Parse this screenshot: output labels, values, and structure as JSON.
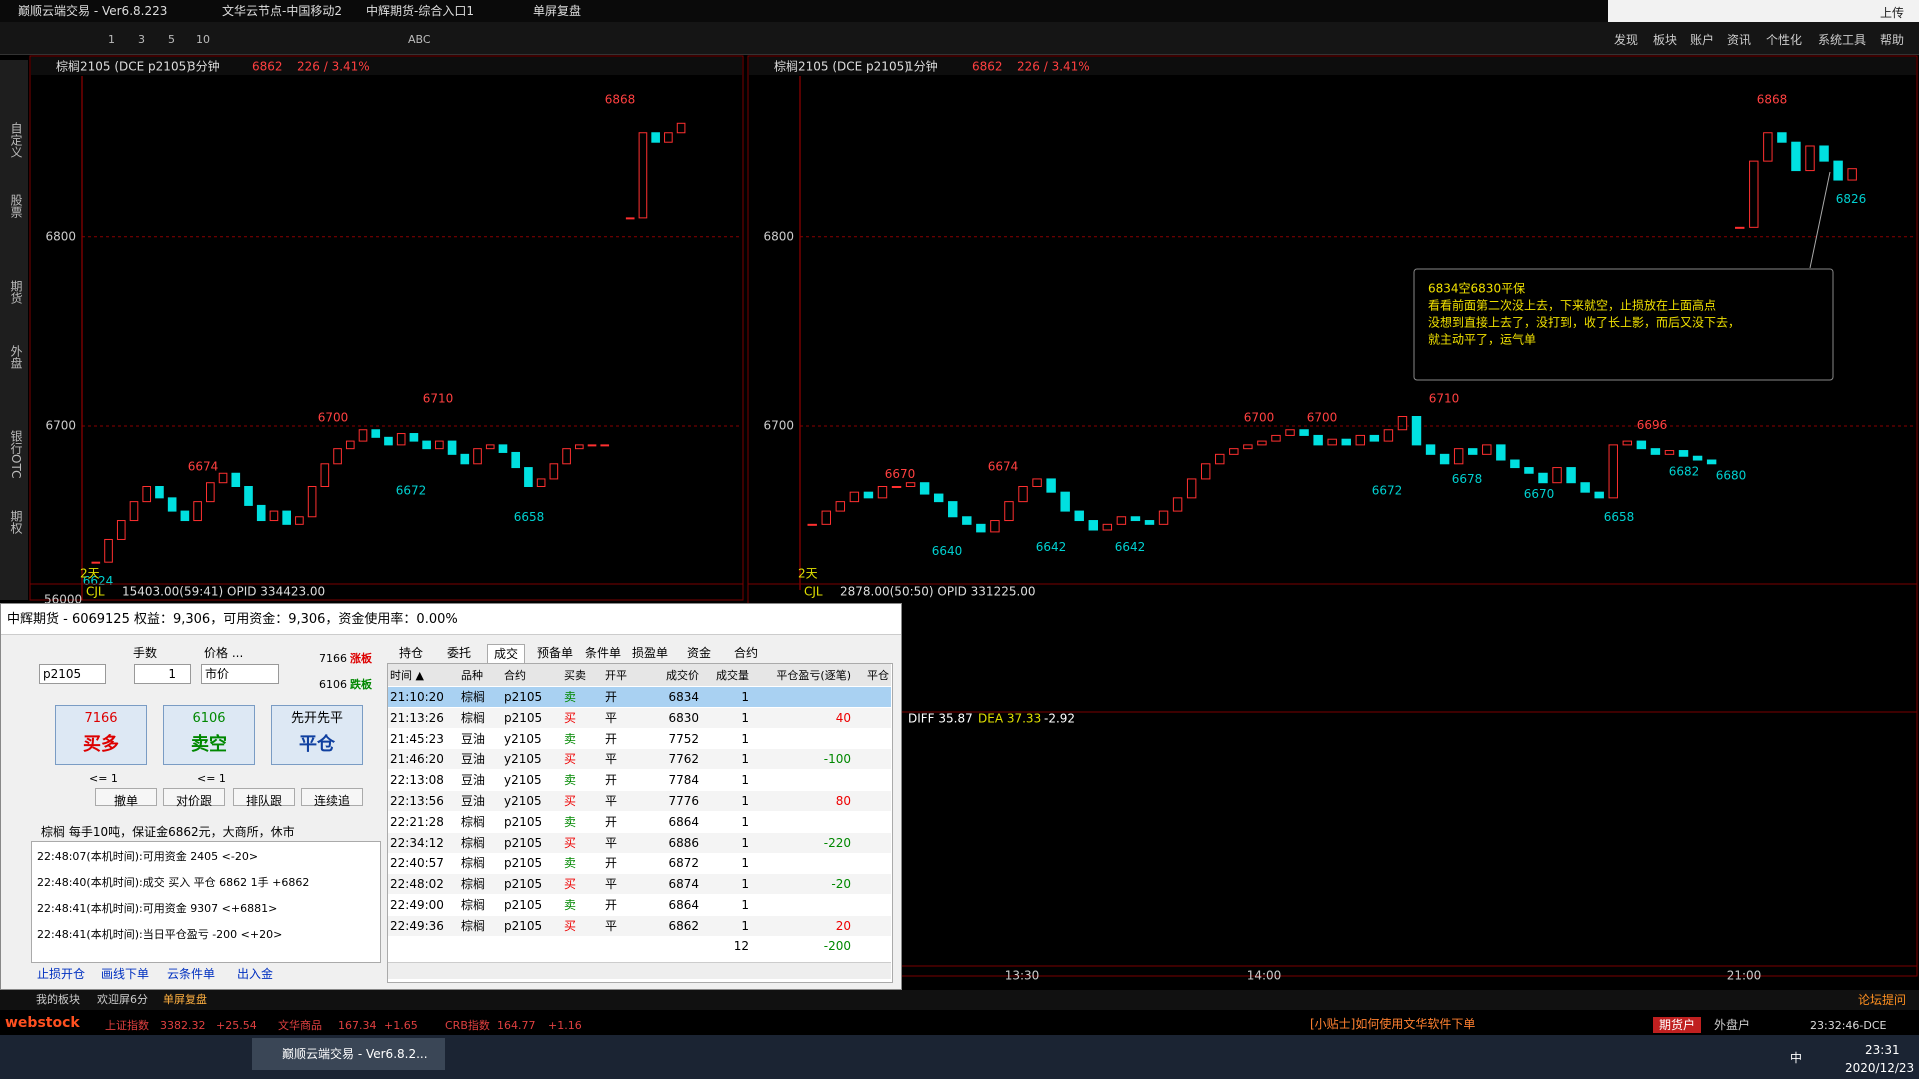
{
  "title_bar": {
    "app": "巅顺云端交易 - Ver6.8.223",
    "node": "文华云节点-中国移动2",
    "account": "中辉期货-综合入口1",
    "mode": "单屏复盘",
    "upload": "上传"
  },
  "menu": [
    "发现",
    "板块",
    "账户",
    "资讯",
    "个性化",
    "系统工具",
    "帮助"
  ],
  "toolbar": [
    "1",
    "3",
    "5",
    "10",
    "ABC"
  ],
  "sidebar": [
    "自定义",
    "股票",
    "期货",
    "外盘",
    "银行OTC",
    "期权"
  ],
  "charts": [
    {
      "type": "candlestick",
      "title": "棕榈2105 (DCE p2105)",
      "period": "3分钟",
      "price": 6862,
      "change": "226 / 3.41%",
      "ylim": [
        6608,
        6885
      ],
      "yticks": [
        6800,
        6700
      ],
      "closes": [
        6628,
        6640,
        6650,
        6660,
        6668,
        6662,
        6655,
        6650,
        6660,
        6670,
        6675,
        6668,
        6658,
        6650,
        6655,
        6648,
        6652,
        6668,
        6680,
        6688,
        6692,
        6698,
        6694,
        6690,
        6696,
        6692,
        6688,
        6692,
        6685,
        6680,
        6688,
        6690,
        6686,
        6678,
        6668,
        6672,
        6680,
        6688,
        6690,
        6690,
        6690,
        null,
        6810,
        6855,
        6850,
        6855,
        6860
      ],
      "high_labels": [
        6868,
        6710,
        6700,
        6674
      ],
      "low_labels": [
        6672,
        6658,
        6624
      ],
      "span_label": "2天",
      "volume_label": "CJL",
      "volume_info": "15403.00(59:41)  OPID 334423.00",
      "volume_tick": 56000
    },
    {
      "type": "candlestick",
      "title": "棕榈2105 (DCE p2105)",
      "period": "1分钟",
      "price": 6862,
      "change": "226 / 3.41%",
      "ylim": [
        6608,
        6885
      ],
      "yticks": [
        6800,
        6700
      ],
      "closes": [
        6648,
        6655,
        6660,
        6665,
        6662,
        6668,
        6668,
        6670,
        6664,
        6660,
        6652,
        6648,
        6644,
        6650,
        6660,
        6668,
        6672,
        6665,
        6655,
        6650,
        6645,
        6648,
        6652,
        6650,
        6648,
        6655,
        6662,
        6672,
        6680,
        6685,
        6688,
        6690,
        6692,
        6695,
        6698,
        6695,
        6690,
        6693,
        6690,
        6695,
        6692,
        6698,
        6705,
        6690,
        6685,
        6680,
        6688,
        6685,
        6690,
        6682,
        6678,
        6675,
        6670,
        6678,
        6670,
        6665,
        6662,
        6690,
        6692,
        6688,
        6685,
        6687,
        6684,
        6682,
        6680,
        null,
        6805,
        6840,
        6855,
        6850,
        6835,
        6848,
        6840,
        6830,
        6836
      ],
      "high_labels": [
        6868,
        6710,
        6700,
        6700,
        6696,
        6674,
        6670
      ],
      "low_labels": [
        6826,
        6640,
        6642,
        6642,
        6672,
        6678,
        6670,
        6658,
        6682,
        6680
      ],
      "span_label": "2天",
      "volume_label": "CJL",
      "volume_info": "2878.00(50:50)  OPID 331225.00",
      "macd": [
        "DIFF 35.87",
        "DEA 37.33",
        "-2.92"
      ],
      "xticks": [
        "13:30",
        "14:00",
        "21:00"
      ],
      "annotation": [
        "6834空6830平保",
        "看看前面第二次没上去，下来就空，止损放在上面高点",
        "没想到直接上去了，没打到，收了长上影，而后又没下去，",
        "就主动平了，运气单"
      ]
    }
  ],
  "trade_panel": {
    "header": "中辉期货 - 6069125  权益：9,306，可用资金：9,306，资金使用率：0.00%",
    "qty_label": "手数",
    "price_label": "价格 ...",
    "symbol": "p2105",
    "qty": 1,
    "price_type": "市价",
    "limit_up": 7166,
    "limit_up_label": "涨板",
    "limit_down": 6106,
    "limit_down_label": "跌板",
    "buy": {
      "price": 7166,
      "label": "买多"
    },
    "sell": {
      "price": 6106,
      "label": "卖空"
    },
    "close": {
      "mode": "先开先平",
      "label": "平仓"
    },
    "max_buy": "<= 1",
    "max_sell": "<= 1",
    "actions": [
      "撤单",
      "对价跟",
      "排队跟",
      "连续追"
    ],
    "info": "棕榈  每手10吨，保证金6862元，大商所，休市",
    "log": [
      "22:48:07(本机时间):可用资金 2405 <-20>",
      "22:48:40(本机时间):成交 买入 平仓 6862 1手 +6862",
      "22:48:41(本机时间):可用资金 9307 <+6881>",
      "22:48:41(本机时间):当日平仓盈亏 -200 <+20>"
    ],
    "links": [
      "止损开仓",
      "画线下单",
      "云条件单",
      "出入金"
    ],
    "tabs": [
      "持仓",
      "委托",
      "成交",
      "预备单",
      "条件单",
      "损盈单",
      "资金",
      "合约"
    ],
    "columns": [
      "时间 ▲",
      "品种",
      "合约",
      "买卖",
      "开平",
      "成交价",
      "成交量",
      "平仓盈亏(逐笔)",
      "平仓"
    ],
    "rows": [
      [
        "21:10:20",
        "棕榈",
        "p2105",
        "卖",
        "开",
        6834,
        1
      ],
      [
        "21:13:26",
        "棕榈",
        "p2105",
        "买",
        "平",
        6830,
        1,
        40
      ],
      [
        "21:45:23",
        "豆油",
        "y2105",
        "卖",
        "开",
        7752,
        1
      ],
      [
        "21:46:20",
        "豆油",
        "y2105",
        "买",
        "平",
        7762,
        1,
        -100
      ],
      [
        "22:13:08",
        "豆油",
        "y2105",
        "卖",
        "开",
        7784,
        1
      ],
      [
        "22:13:56",
        "豆油",
        "y2105",
        "买",
        "平",
        7776,
        1,
        80
      ],
      [
        "22:21:28",
        "棕榈",
        "p2105",
        "卖",
        "开",
        6864,
        1
      ],
      [
        "22:34:12",
        "棕榈",
        "p2105",
        "买",
        "平",
        6886,
        1,
        -220
      ],
      [
        "22:40:57",
        "棕榈",
        "p2105",
        "卖",
        "开",
        6872,
        1
      ],
      [
        "22:48:02",
        "棕榈",
        "p2105",
        "买",
        "平",
        6874,
        1,
        -20
      ],
      [
        "22:49:00",
        "棕榈",
        "p2105",
        "卖",
        "开",
        6864,
        1
      ],
      [
        "22:49:36",
        "棕榈",
        "p2105",
        "买",
        "平",
        6862,
        1,
        20
      ]
    ],
    "total": [
      12,
      -200
    ]
  },
  "bottom": {
    "tabs": [
      "我的板块",
      "欢迎屏6分",
      "单屏复盘"
    ],
    "forum": "论坛提问",
    "logo": "webstock",
    "indices": [
      {
        "name": "上证指数",
        "value": 3382.32,
        "change": "+25.54"
      },
      {
        "name": "文华商品",
        "value": 167.34,
        "change": "+1.65"
      },
      {
        "name": "CRB指数",
        "value": 164.77,
        "change": "+1.16"
      }
    ],
    "tip": "[小贴士]如何使用文华软件下单",
    "accounts": [
      "期货户",
      "外盘户"
    ],
    "clock": "23:32:46-DCE"
  },
  "taskbar": {
    "app": "巅顺云端交易 - Ver6.8.2...",
    "ime": "中",
    "time": "23:31",
    "date": "2020/12/23"
  }
}
